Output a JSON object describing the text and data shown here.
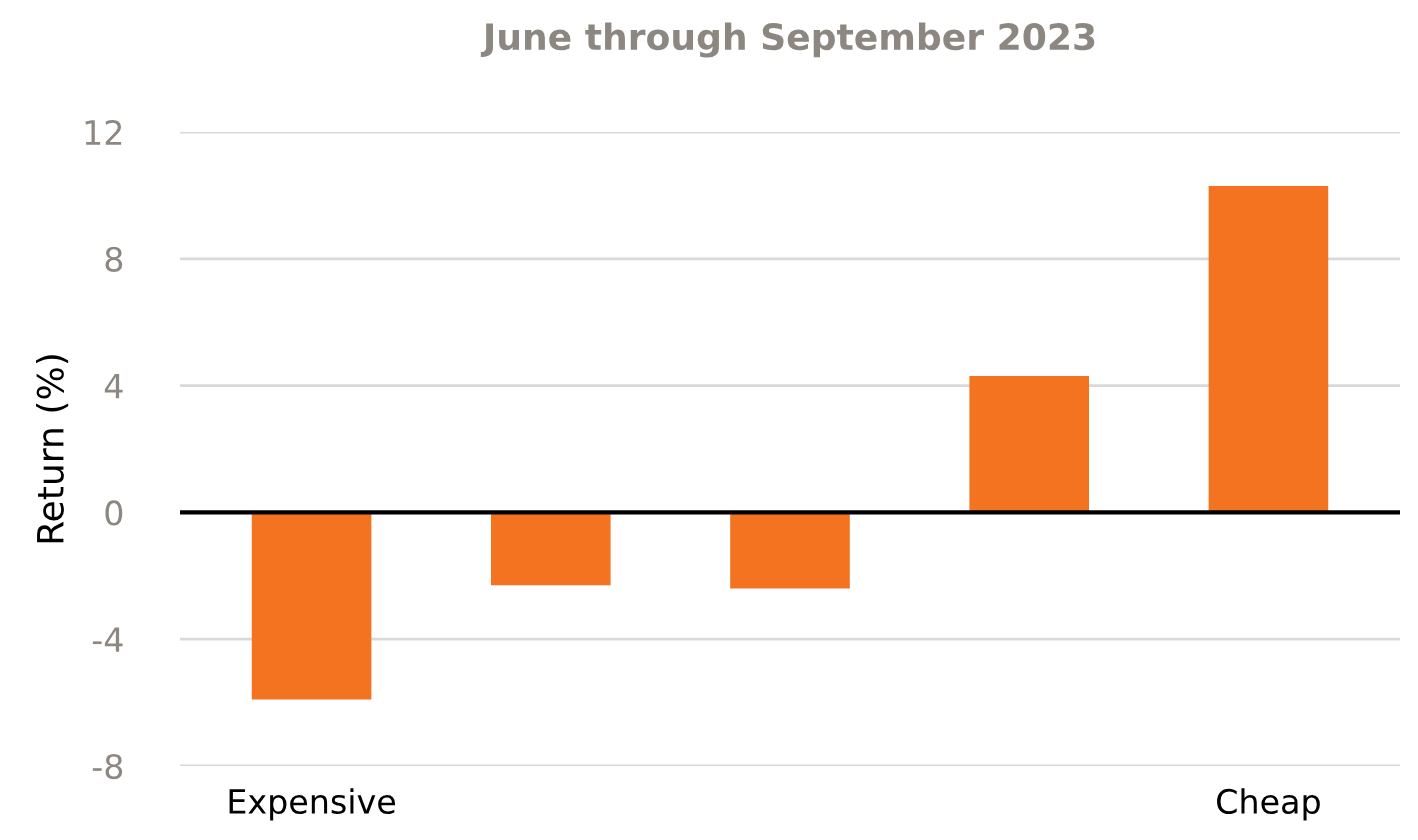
{
  "chart_data": {
    "type": "bar",
    "title": "June through September 2023",
    "ylabel": "Return (%)",
    "categories": [
      "Expensive",
      null,
      null,
      null,
      "Cheap"
    ],
    "values": [
      -5.9,
      -2.3,
      -2.4,
      4.3,
      10.3
    ],
    "color": "#f37321",
    "ylim": [
      -8,
      12
    ],
    "yticks": [
      -8,
      -4,
      0,
      4,
      8,
      12
    ],
    "grid": "y",
    "ref_lines": [
      {
        "axis": "y",
        "value": 0,
        "color": "#000000"
      }
    ]
  }
}
